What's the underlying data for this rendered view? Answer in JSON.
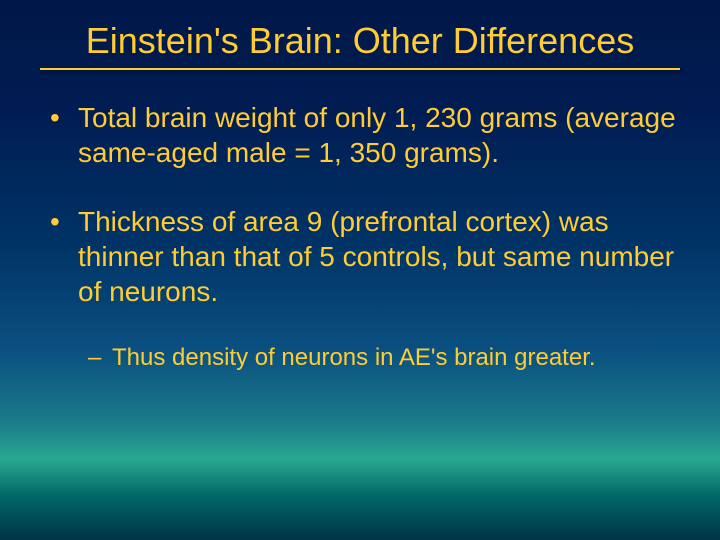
{
  "slide": {
    "title": "Einstein's Brain: Other Differences",
    "background": {
      "gradient_stops": [
        "#001848",
        "#001c52",
        "#003366",
        "#0a5080",
        "#1a7a8a",
        "#2aa890",
        "#006666",
        "#003344"
      ],
      "gradient_positions_pct": [
        0,
        20,
        45,
        65,
        78,
        85,
        92,
        100
      ]
    },
    "text_color": "#ffcc33",
    "title_fontsize": 36,
    "body_fontsize_l1": 28,
    "body_fontsize_l2": 24,
    "bullets": [
      {
        "level": 1,
        "text": "Total brain weight of only 1, 230 grams (average same-aged male = 1, 350 grams)."
      },
      {
        "level": 1,
        "text": "Thickness of area 9 (prefrontal cortex) was thinner than that of 5 controls, but same number of neurons."
      },
      {
        "level": 2,
        "text": "Thus density of neurons in AE's brain greater."
      }
    ]
  }
}
